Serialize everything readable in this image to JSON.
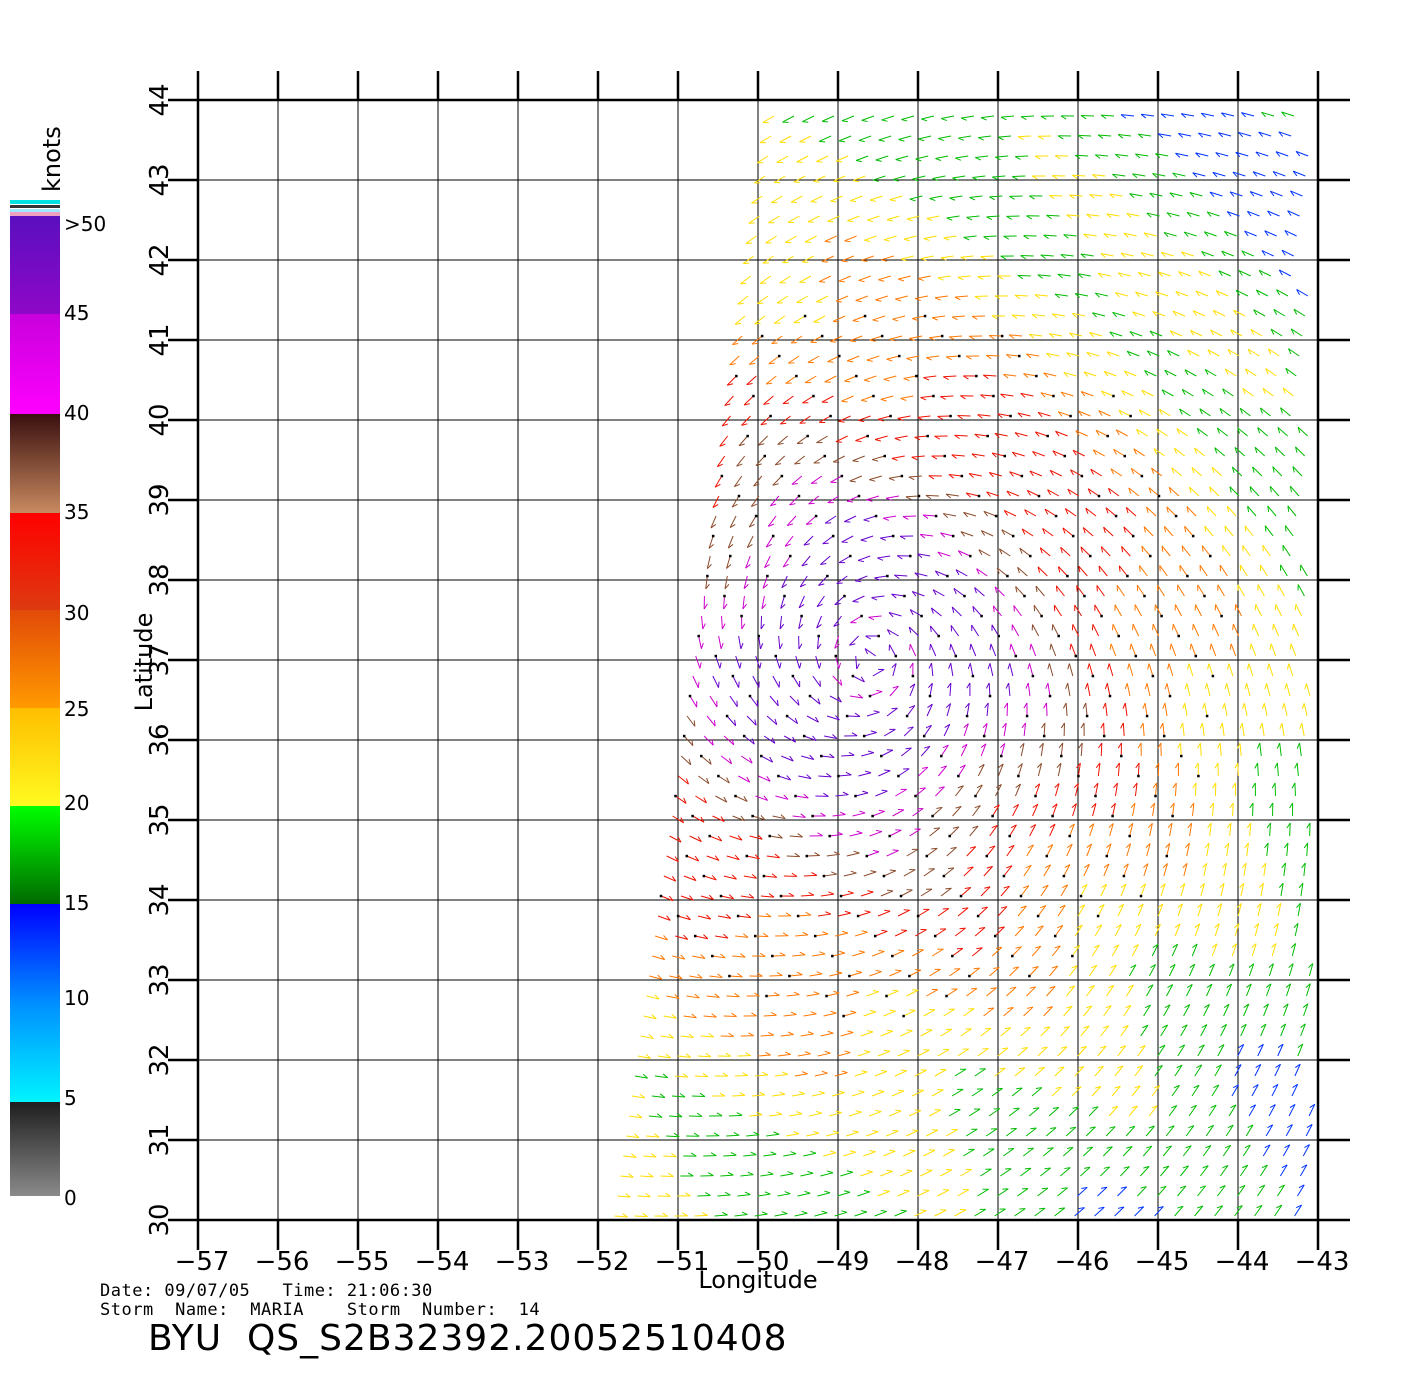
{
  "legend": {
    "unit_label": "knots",
    "labels": [
      ">50",
      "45",
      "40",
      "35",
      "30",
      "25",
      "20",
      "15",
      "10",
      "5",
      "0"
    ]
  },
  "axes": {
    "x_label": "Longitude",
    "y_label": "Latitude",
    "x_ticks": [
      "−57",
      "−56",
      "−55",
      "−54",
      "−53",
      "−52",
      "−51",
      "−50",
      "−49",
      "−48",
      "−47",
      "−46",
      "−45",
      "−44",
      "−43"
    ],
    "y_ticks": [
      "30",
      "31",
      "32",
      "33",
      "34",
      "35",
      "36",
      "37",
      "38",
      "39",
      "40",
      "41",
      "42",
      "43",
      "44"
    ],
    "lon_range": [
      -57,
      -43
    ],
    "lat_range": [
      30,
      44
    ]
  },
  "footer": {
    "date_line": "Date: 09/07/05   Time: 21:06:30",
    "storm_line": "Storm  Name:  MARIA    Storm  Number:  14",
    "product_title": "BYU  QS_S2B32392.20052510408"
  },
  "colors": {
    "speed_0_5": "#555555",
    "speed_5_10": "#00aaff",
    "speed_10_15": "#0033ff",
    "speed_15_20": "#00bb00",
    "speed_20_25": "#ffdd00",
    "speed_25_30": "#ff7700",
    "speed_30_35": "#ee1100",
    "speed_35_40": "#8a4a2a",
    "speed_40_45": "#cc00cc",
    "speed_45_50": "#6600cc"
  }
}
